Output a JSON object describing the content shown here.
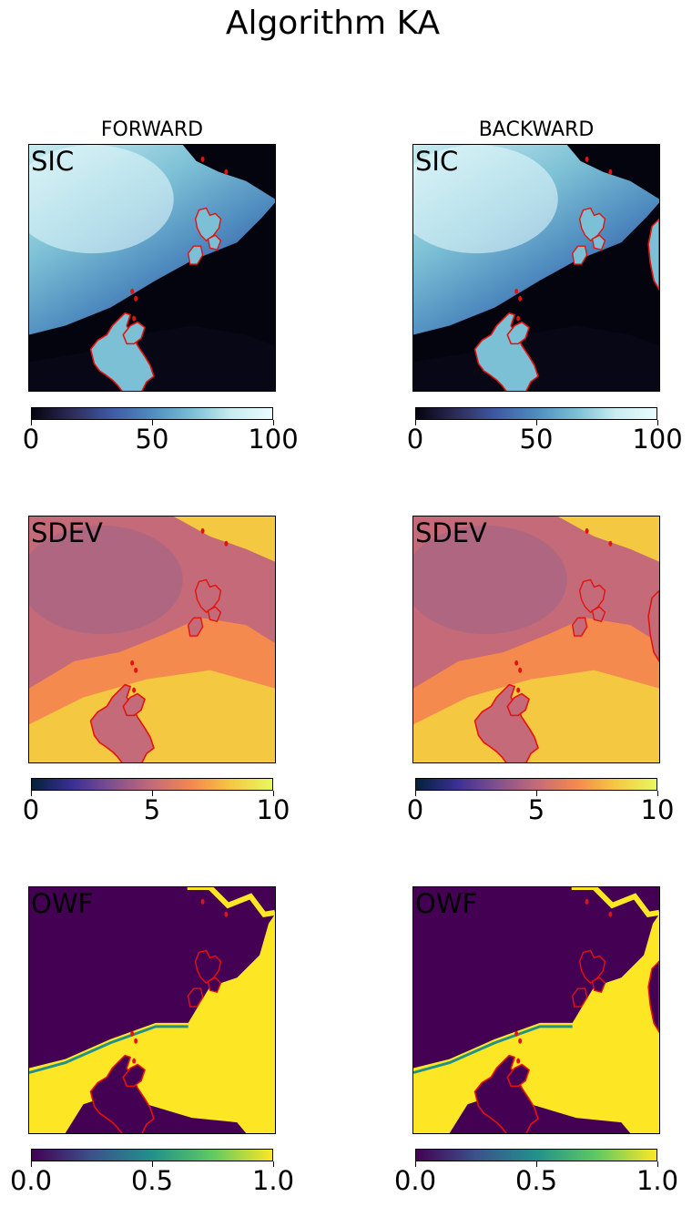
{
  "title": "Algorithm KA",
  "columns": [
    "FORWARD",
    "BACKWARD"
  ],
  "rows": [
    {
      "label": "SIC",
      "ticks": [
        "0",
        "50",
        "100"
      ],
      "colormap": "ice"
    },
    {
      "label": "SDEV",
      "ticks": [
        "0",
        "5",
        "10"
      ],
      "colormap": "thermal"
    },
    {
      "label": "OWF",
      "ticks": [
        "0.0",
        "0.5",
        "1.0"
      ],
      "colormap": "viridis"
    }
  ],
  "colors": {
    "ice": [
      "#04040e",
      "#2e2c5a",
      "#3e59a3",
      "#4f8cbf",
      "#7cc0d5",
      "#c8ecf0",
      "#eafcfd"
    ],
    "thermal": [
      "#03223a",
      "#3b2f95",
      "#7f4f8f",
      "#c46a78",
      "#f58a4e",
      "#f5c842",
      "#e8f85e"
    ],
    "viridis": [
      "#440154",
      "#3b528b",
      "#21918c",
      "#5ec962",
      "#fde725"
    ],
    "coastline": "#e4120e"
  },
  "chart_data": [
    {
      "type": "heatmap",
      "column": "FORWARD",
      "panel_label": "SIC",
      "colorbar_range": [
        0,
        100
      ],
      "colorbar_ticks": [
        0,
        50,
        100
      ]
    },
    {
      "type": "heatmap",
      "column": "BACKWARD",
      "panel_label": "SIC",
      "colorbar_range": [
        0,
        100
      ],
      "colorbar_ticks": [
        0,
        50,
        100
      ]
    },
    {
      "type": "heatmap",
      "column": "FORWARD",
      "panel_label": "SDEV",
      "colorbar_range": [
        0,
        10
      ],
      "colorbar_ticks": [
        0,
        5,
        10
      ]
    },
    {
      "type": "heatmap",
      "column": "BACKWARD",
      "panel_label": "SDEV",
      "colorbar_range": [
        0,
        10
      ],
      "colorbar_ticks": [
        0,
        5,
        10
      ]
    },
    {
      "type": "heatmap",
      "column": "FORWARD",
      "panel_label": "OWF",
      "colorbar_range": [
        0.0,
        1.0
      ],
      "colorbar_ticks": [
        0.0,
        0.5,
        1.0
      ]
    },
    {
      "type": "heatmap",
      "column": "BACKWARD",
      "panel_label": "OWF",
      "colorbar_range": [
        0.0,
        1.0
      ],
      "colorbar_ticks": [
        0.0,
        0.5,
        1.0
      ]
    }
  ]
}
